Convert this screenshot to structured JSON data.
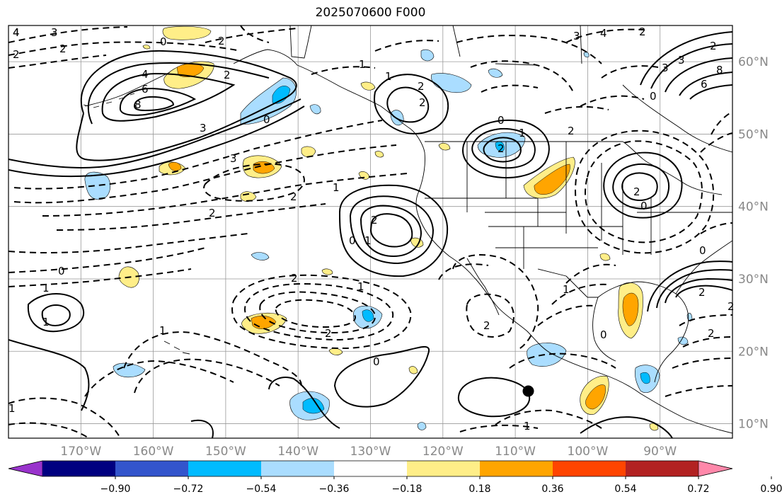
{
  "title": "2025070600 F000",
  "map": {
    "lon_range": [
      -180,
      -80
    ],
    "lat_range": [
      8,
      65
    ],
    "lat_ticks": [
      {
        "value": 60,
        "label": "60°N"
      },
      {
        "value": 50,
        "label": "50°N"
      },
      {
        "value": 40,
        "label": "40°N"
      },
      {
        "value": 30,
        "label": "30°N"
      },
      {
        "value": 20,
        "label": "20°N"
      },
      {
        "value": 10,
        "label": "10°N"
      }
    ],
    "lon_ticks": [
      {
        "value": -170,
        "label": "170°W"
      },
      {
        "value": -160,
        "label": "160°W"
      },
      {
        "value": -150,
        "label": "150°W"
      },
      {
        "value": -140,
        "label": "140°W"
      },
      {
        "value": -130,
        "label": "130°W"
      },
      {
        "value": -120,
        "label": "120°W"
      },
      {
        "value": -110,
        "label": "110°W"
      },
      {
        "value": -100,
        "label": "100°W"
      },
      {
        "value": -90,
        "label": "90°W"
      }
    ],
    "grid": true,
    "contour_labels": [
      "4",
      "3",
      "2",
      "0",
      "2",
      "3",
      "4",
      "2",
      "2",
      "1",
      "4",
      "6",
      "8",
      "3",
      "2",
      "3",
      "2",
      "0",
      "2",
      "1",
      "2",
      "1",
      "0",
      "2",
      "1",
      "2",
      "0",
      "1",
      "2",
      "2",
      "1",
      "2",
      "2",
      "1",
      "0",
      "1",
      "1",
      "2",
      "0",
      "0",
      "1",
      "2",
      "0",
      "0",
      "1",
      "1",
      "2",
      "4",
      "3",
      "3",
      "2",
      "0",
      "2",
      "6",
      "8",
      "2"
    ],
    "marker": {
      "lon": -108.2,
      "lat": 14.5
    }
  },
  "colorbar": {
    "colors": [
      "#9933cc",
      "#000080",
      "#3355cc",
      "#00bbff",
      "#aaddff",
      "#ffffff",
      "#ffee88",
      "#ffa500",
      "#ff4500",
      "#b22222",
      "#ff88aa"
    ],
    "ticks": [
      "−0.90",
      "−0.72",
      "−0.54",
      "−0.36",
      "−0.18",
      "0.18",
      "0.36",
      "0.54",
      "0.72",
      "0.90"
    ],
    "extend": "both"
  }
}
